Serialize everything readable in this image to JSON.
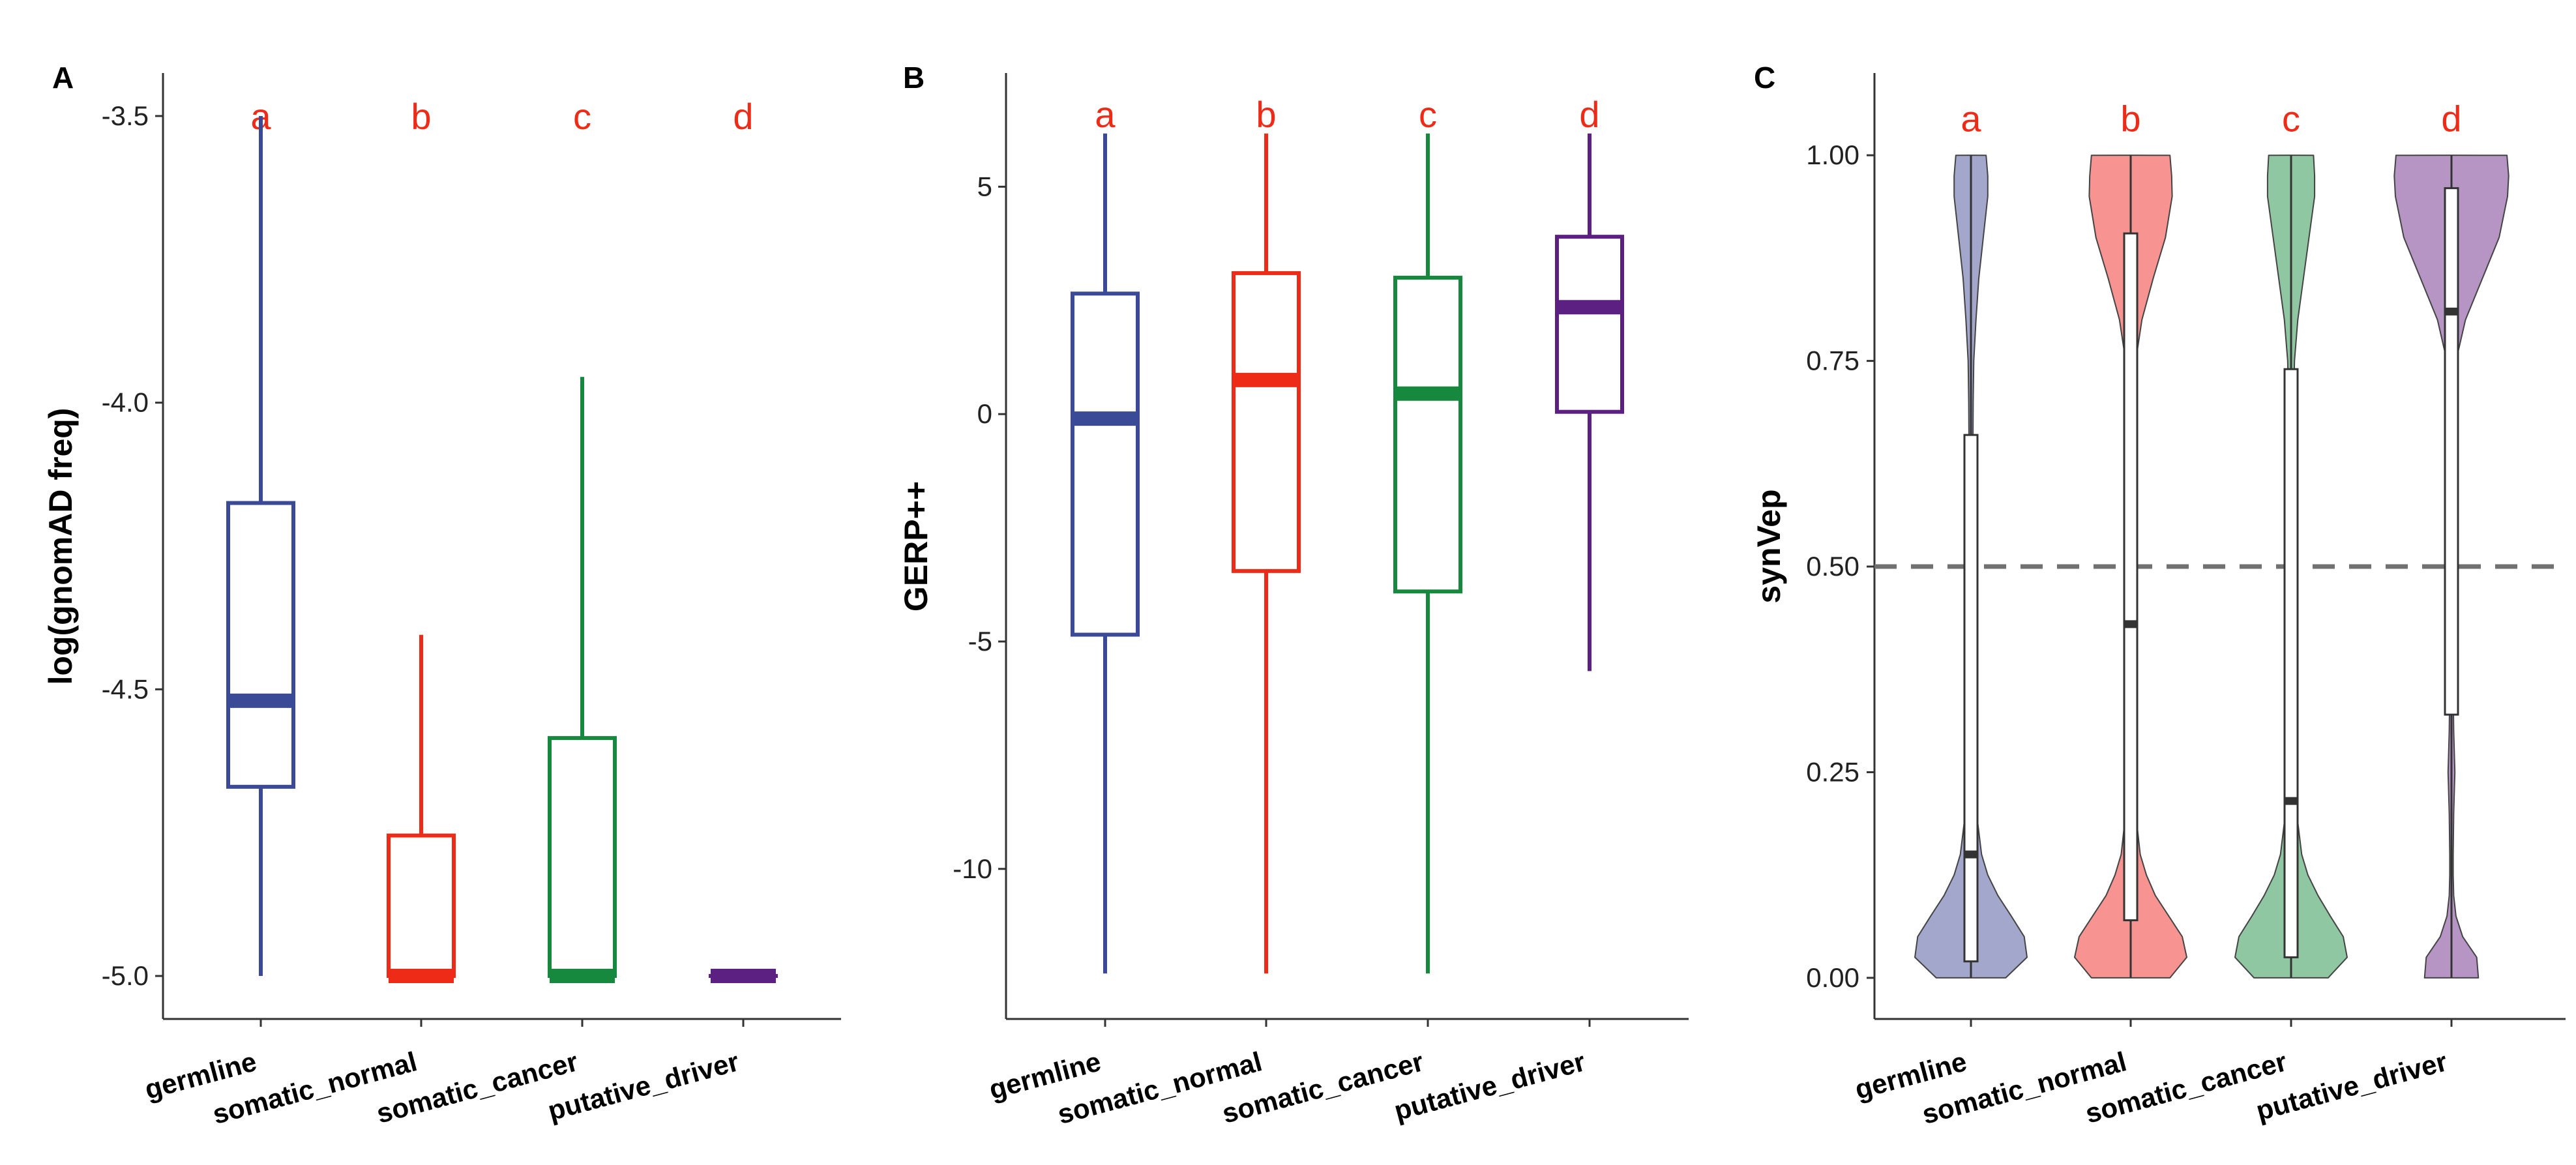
{
  "chart_data": [
    {
      "panel": "A",
      "type": "box",
      "title": "",
      "xlabel": "",
      "ylabel": "log(gnomAD freq)",
      "ylim": [
        -5.075,
        -3.425
      ],
      "yticks": [
        -3.5,
        -4.0,
        -4.5,
        -5.0
      ],
      "ytick_labels": [
        "-3.5",
        "-4.0",
        "-4.5",
        "-5.0"
      ],
      "categories": [
        "germline",
        "somatic_normal",
        "somatic_cancer",
        "putative_driver"
      ],
      "colors": [
        "#3b4a96",
        "#ee2b16",
        "#17893f",
        "#5c1f82"
      ],
      "letters": [
        "a",
        "b",
        "c",
        "d"
      ],
      "letter_y": -3.5,
      "letter_color": "#ee2b16",
      "boxes": [
        {
          "min": -5.0,
          "q1": -4.67,
          "median": -4.52,
          "q3": -4.175,
          "max": -3.5
        },
        {
          "min": -5.0,
          "q1": -5.0,
          "median": -5.0,
          "q3": -4.755,
          "max": -4.405
        },
        {
          "min": -5.0,
          "q1": -5.0,
          "median": -5.0,
          "q3": -4.585,
          "max": -3.955
        },
        {
          "min": -5.0,
          "q1": -5.0,
          "median": -5.0,
          "q3": -5.0,
          "max": -5.0
        }
      ]
    },
    {
      "panel": "B",
      "type": "box",
      "title": "",
      "xlabel": "",
      "ylabel": "GERP++",
      "ylim": [
        -13.3,
        7.5
      ],
      "yticks": [
        5,
        0,
        -5,
        -10
      ],
      "ytick_labels": [
        "5",
        "0",
        "-5",
        "-10"
      ],
      "categories": [
        "germline",
        "somatic_normal",
        "somatic_cancer",
        "putative_driver"
      ],
      "colors": [
        "#3b4a96",
        "#ee2b16",
        "#17893f",
        "#5c1f82"
      ],
      "letters": [
        "a",
        "b",
        "c",
        "d"
      ],
      "letter_y": 6.6,
      "letter_color": "#ee2b16",
      "boxes": [
        {
          "min": -12.3,
          "q1": -4.85,
          "median": -0.1,
          "q3": 2.65,
          "max": 6.17
        },
        {
          "min": -12.3,
          "q1": -3.45,
          "median": 0.75,
          "q3": 3.1,
          "max": 6.17
        },
        {
          "min": -12.3,
          "q1": -3.9,
          "median": 0.45,
          "q3": 3.0,
          "max": 6.17
        },
        {
          "min": -5.65,
          "q1": 0.05,
          "median": 2.35,
          "q3": 3.9,
          "max": 6.17
        }
      ]
    },
    {
      "panel": "C",
      "type": "violin",
      "title": "",
      "xlabel": "",
      "ylabel": "synVep",
      "ylim": [
        -0.05,
        1.1
      ],
      "yticks": [
        1.0,
        0.75,
        0.5,
        0.25,
        0.0
      ],
      "ytick_labels": [
        "1.00",
        "0.75",
        "0.50",
        "0.25",
        "0.00"
      ],
      "categories": [
        "germline",
        "somatic_normal",
        "somatic_cancer",
        "putative_driver"
      ],
      "colors": [
        "#a2a7cb",
        "#f79492",
        "#8fc7a2",
        "#b694c4"
      ],
      "letters": [
        "a",
        "b",
        "c",
        "d"
      ],
      "letter_y": 1.045,
      "letter_color": "#ee2b16",
      "reference_line": 0.5,
      "violin_y": [
        0.0,
        0.025,
        0.05,
        0.075,
        0.1,
        0.125,
        0.15,
        0.2,
        0.25,
        0.3,
        0.35,
        0.4,
        0.45,
        0.5,
        0.55,
        0.6,
        0.65,
        0.7,
        0.75,
        0.8,
        0.85,
        0.9,
        0.95,
        0.975,
        1.0
      ],
      "violin_width": [
        [
          0.62,
          1.0,
          0.95,
          0.72,
          0.48,
          0.3,
          0.19,
          0.1,
          0.07,
          0.05,
          0.045,
          0.04,
          0.035,
          0.035,
          0.035,
          0.035,
          0.035,
          0.04,
          0.05,
          0.09,
          0.14,
          0.22,
          0.3,
          0.3,
          0.27
        ],
        [
          0.7,
          1.0,
          0.92,
          0.68,
          0.44,
          0.28,
          0.17,
          0.09,
          0.06,
          0.05,
          0.045,
          0.045,
          0.045,
          0.045,
          0.045,
          0.05,
          0.05,
          0.06,
          0.09,
          0.2,
          0.4,
          0.62,
          0.74,
          0.73,
          0.7
        ],
        [
          0.66,
          1.0,
          0.93,
          0.7,
          0.48,
          0.3,
          0.19,
          0.1,
          0.07,
          0.05,
          0.045,
          0.04,
          0.04,
          0.04,
          0.04,
          0.04,
          0.04,
          0.045,
          0.06,
          0.12,
          0.22,
          0.32,
          0.42,
          0.42,
          0.4
        ],
        [
          0.48,
          0.45,
          0.2,
          0.08,
          0.04,
          0.03,
          0.03,
          0.04,
          0.06,
          0.04,
          0.03,
          0.03,
          0.03,
          0.03,
          0.03,
          0.03,
          0.035,
          0.04,
          0.08,
          0.25,
          0.55,
          0.85,
          1.0,
          1.02,
          0.99
        ]
      ],
      "boxes": [
        {
          "min": 0.0,
          "q1": 0.02,
          "median": 0.15,
          "q3": 0.66,
          "max": 1.0
        },
        {
          "min": 0.0,
          "q1": 0.07,
          "median": 0.43,
          "q3": 0.905,
          "max": 1.0
        },
        {
          "min": 0.0,
          "q1": 0.025,
          "median": 0.215,
          "q3": 0.74,
          "max": 1.0
        },
        {
          "min": 0.0,
          "q1": 0.32,
          "median": 0.81,
          "q3": 0.96,
          "max": 1.0
        }
      ]
    }
  ]
}
